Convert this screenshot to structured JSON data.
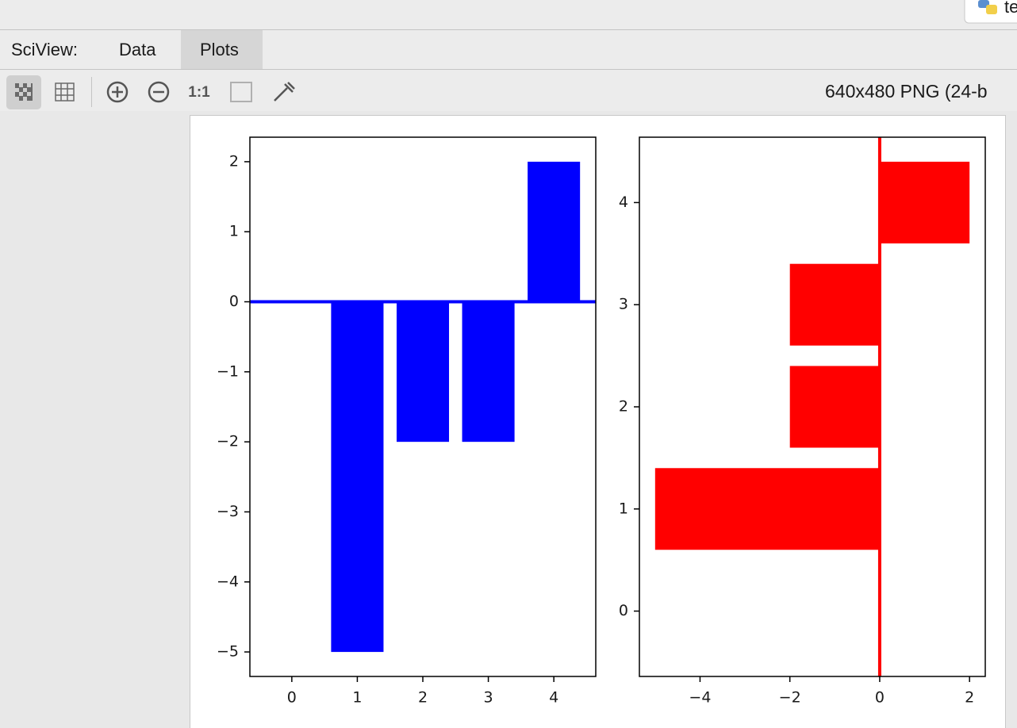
{
  "window": {
    "tab_label": "te"
  },
  "sciview": {
    "label": "SciView:",
    "tabs": [
      "Data",
      "Plots"
    ]
  },
  "toolbar": {
    "actual_size": "1:1",
    "image_info": "640x480 PNG (24-b"
  },
  "chart_data": [
    {
      "type": "bar",
      "x": [
        0,
        1,
        2,
        3,
        4
      ],
      "values": [
        0,
        -5,
        -2,
        -2,
        2
      ],
      "color": "#0000ff",
      "hline": 0,
      "xlim": [
        -0.64,
        4.64
      ],
      "ylim": [
        -5.35,
        2.35
      ],
      "xticks": [
        0,
        1,
        2,
        3,
        4
      ],
      "yticks": [
        {
          "value": -5,
          "label": "−5"
        },
        {
          "value": -4,
          "label": "−4"
        },
        {
          "value": -3,
          "label": "−3"
        },
        {
          "value": -2,
          "label": "−2"
        },
        {
          "value": -1,
          "label": "−1"
        },
        0,
        1,
        2
      ]
    },
    {
      "type": "barh",
      "y": [
        0,
        1,
        2,
        3,
        4
      ],
      "values": [
        0,
        -5,
        -2,
        -2,
        2
      ],
      "color": "#ff0000",
      "vline": 0,
      "xlim": [
        -5.35,
        2.35
      ],
      "ylim": [
        -0.64,
        4.64
      ],
      "xticks": [
        {
          "value": -4,
          "label": "−4"
        },
        {
          "value": -2,
          "label": "−2"
        },
        0,
        2
      ],
      "yticks": [
        0,
        1,
        2,
        3,
        4
      ]
    }
  ]
}
